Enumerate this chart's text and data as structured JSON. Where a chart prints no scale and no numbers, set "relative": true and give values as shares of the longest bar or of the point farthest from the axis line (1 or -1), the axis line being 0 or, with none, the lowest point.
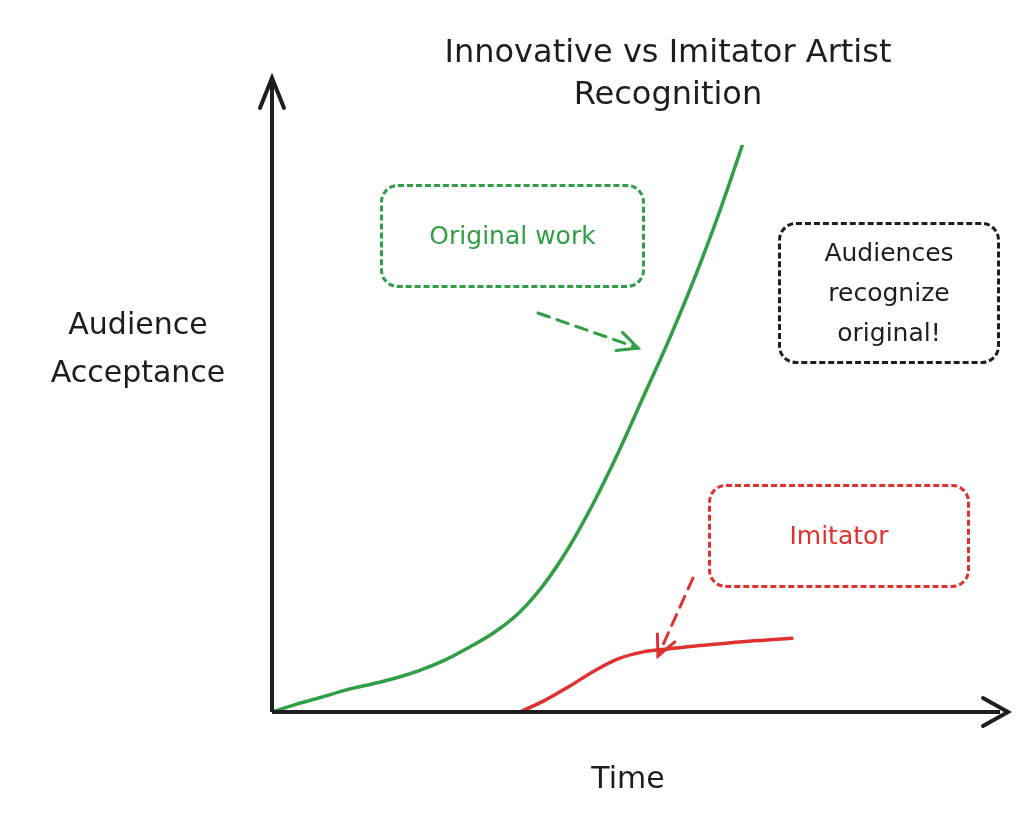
{
  "chart_data": {
    "type": "line",
    "title": "Innovative vs Imitator Artist Recognition",
    "xlabel": "Time",
    "ylabel": "Audience Acceptance",
    "relative": true,
    "marker": "none",
    "line_style": "solid",
    "categories": [
      null,
      null,
      null,
      null,
      null,
      null,
      null,
      null,
      null,
      null,
      null,
      null,
      null,
      null,
      null,
      null,
      null,
      null,
      null,
      null,
      null,
      null,
      null,
      null,
      null,
      null,
      null,
      null,
      null,
      null
    ],
    "series": [
      {
        "name": "Original work",
        "color": "#2f9e44",
        "values": [
          0,
          0.014,
          0.026,
          0.039,
          0.049,
          0.06,
          0.074,
          0.092,
          0.115,
          0.141,
          0.176,
          0.226,
          0.291,
          0.37,
          0.459,
          0.556,
          0.653,
          0.758,
          0.873,
          1,
          null,
          null,
          null,
          null,
          null,
          null,
          null,
          null,
          null,
          null
        ]
      },
      {
        "name": "Imitator",
        "color": "#e03131",
        "values": [
          null,
          null,
          null,
          null,
          null,
          null,
          null,
          null,
          null,
          null,
          0,
          0.02,
          0.045,
          0.072,
          0.094,
          0.106,
          0.111,
          0.116,
          0.12,
          0.124,
          0.127,
          0.13,
          null,
          null,
          null,
          null,
          null,
          null,
          null,
          null
        ]
      }
    ],
    "annotations": [
      "Audiences recognize original!"
    ]
  }
}
